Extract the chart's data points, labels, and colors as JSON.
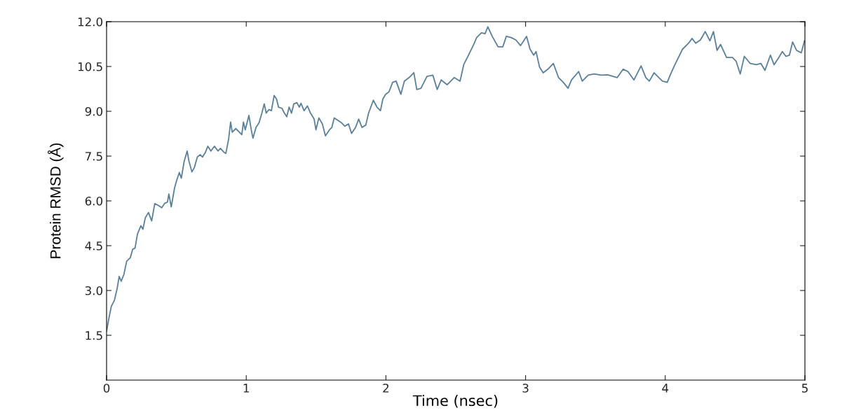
{
  "chart_data": {
    "type": "line",
    "xlabel": "Time (nsec)",
    "ylabel": "Protein RMSD (Å)",
    "xlim": [
      0,
      5
    ],
    "xticks": [
      0,
      1,
      2,
      3,
      4,
      5
    ],
    "ylim": [
      0,
      12
    ],
    "yticks": [
      {
        "value": 1.5,
        "label": "1.5"
      },
      {
        "value": 3,
        "label": "3.0"
      },
      {
        "value": 4.5,
        "label": "4.5"
      },
      {
        "value": 6,
        "label": "6.0"
      },
      {
        "value": 7.5,
        "label": "7.5"
      },
      {
        "value": 9,
        "label": "9.0"
      },
      {
        "value": 10.5,
        "label": "10.5"
      },
      {
        "value": 12,
        "label": "12.0"
      }
    ],
    "grid": false,
    "marker": "none",
    "line_style": "solid",
    "series": [
      {
        "color": "#5a7f99",
        "x": [
          0,
          0.017,
          0.034,
          0.056,
          0.076,
          0.09,
          0.105,
          0.124,
          0.144,
          0.17,
          0.187,
          0.204,
          0.221,
          0.246,
          0.26,
          0.277,
          0.3,
          0.323,
          0.345,
          0.373,
          0.395,
          0.416,
          0.436,
          0.446,
          0.463,
          0.487,
          0.504,
          0.521,
          0.535,
          0.555,
          0.577,
          0.589,
          0.611,
          0.628,
          0.65,
          0.67,
          0.687,
          0.708,
          0.725,
          0.747,
          0.772,
          0.798,
          0.815,
          0.84,
          0.854,
          0.874,
          0.888,
          0.9,
          0.925,
          0.951,
          0.968,
          0.98,
          0.993,
          1.019,
          1.036,
          1.048,
          1.07,
          1.092,
          1.112,
          1.129,
          1.143,
          1.163,
          1.18,
          1.2,
          1.217,
          1.231,
          1.256,
          1.273,
          1.29,
          1.307,
          1.324,
          1.341,
          1.363,
          1.38,
          1.392,
          1.414,
          1.438,
          1.46,
          1.486,
          1.499,
          1.52,
          1.545,
          1.567,
          1.596,
          1.613,
          1.63,
          1.655,
          1.681,
          1.706,
          1.732,
          1.754,
          1.783,
          1.805,
          1.829,
          1.856,
          1.876,
          1.91,
          1.936,
          1.961,
          1.978,
          1.998,
          2.022,
          2.048,
          2.073,
          2.107,
          2.132,
          2.166,
          2.2,
          2.221,
          2.251,
          2.294,
          2.336,
          2.367,
          2.396,
          2.438,
          2.489,
          2.531,
          2.557,
          2.591,
          2.625,
          2.65,
          2.684,
          2.71,
          2.73,
          2.761,
          2.803,
          2.837,
          2.862,
          2.896,
          2.93,
          2.964,
          3.007,
          3.032,
          3.058,
          3.075,
          3.1,
          3.126,
          3.16,
          3.199,
          3.236,
          3.27,
          3.304,
          3.329,
          3.38,
          3.406,
          3.448,
          3.491,
          3.542,
          3.588,
          3.656,
          3.699,
          3.733,
          3.776,
          3.827,
          3.861,
          3.886,
          3.92,
          3.954,
          3.98,
          4.014,
          4.039,
          4.065,
          4.09,
          4.124,
          4.167,
          4.192,
          4.218,
          4.252,
          4.286,
          4.32,
          4.345,
          4.371,
          4.396,
          4.439,
          4.481,
          4.507,
          4.537,
          4.566,
          4.609,
          4.651,
          4.685,
          4.714,
          4.753,
          4.779,
          4.813,
          4.838,
          4.864,
          4.889,
          4.912,
          4.94,
          4.974,
          4.997
        ],
        "values": [
          1.64,
          2.08,
          2.47,
          2.67,
          3.07,
          3.47,
          3.31,
          3.54,
          3.98,
          4.1,
          4.38,
          4.42,
          4.89,
          5.17,
          5.05,
          5.43,
          5.61,
          5.33,
          5.91,
          5.84,
          5.77,
          5.92,
          5.96,
          6.23,
          5.8,
          6.44,
          6.72,
          6.95,
          6.76,
          7.31,
          7.67,
          7.35,
          6.97,
          7.11,
          7.47,
          7.55,
          7.47,
          7.63,
          7.83,
          7.67,
          7.83,
          7.67,
          7.76,
          7.63,
          7.59,
          8.07,
          8.64,
          8.3,
          8.42,
          8.3,
          8.22,
          8.64,
          8.38,
          8.86,
          8.38,
          8.1,
          8.46,
          8.62,
          8.94,
          9.25,
          8.94,
          9.06,
          9.02,
          9.53,
          9.41,
          9.14,
          9.1,
          8.94,
          8.82,
          9.14,
          8.94,
          9.25,
          9.29,
          9.14,
          9.27,
          9.02,
          9.18,
          8.94,
          8.74,
          8.38,
          8.78,
          8.58,
          8.18,
          8.38,
          8.46,
          8.78,
          8.7,
          8.62,
          8.5,
          8.58,
          8.26,
          8.46,
          8.74,
          8.46,
          8.54,
          8.94,
          9.37,
          9.14,
          9.02,
          9.41,
          9.57,
          9.65,
          9.97,
          10.01,
          9.57,
          10.01,
          10.13,
          10.29,
          9.73,
          9.77,
          10.17,
          10.21,
          9.73,
          10.05,
          9.89,
          10.13,
          10.01,
          10.56,
          10.88,
          11.2,
          11.47,
          11.63,
          11.6,
          11.83,
          11.51,
          11.16,
          11.16,
          11.51,
          11.47,
          11.39,
          11.2,
          11.51,
          11.08,
          10.88,
          11.0,
          10.48,
          10.29,
          10.41,
          10.6,
          10.13,
          9.97,
          9.77,
          10.05,
          10.33,
          10.01,
          10.21,
          10.25,
          10.21,
          10.22,
          10.13,
          10.41,
          10.33,
          10.05,
          10.52,
          10.13,
          10.01,
          10.29,
          10.13,
          10.01,
          9.97,
          10.25,
          10.52,
          10.76,
          11.08,
          11.28,
          11.44,
          11.28,
          11.39,
          11.67,
          11.36,
          11.67,
          11.04,
          11.24,
          10.8,
          10.8,
          10.68,
          10.25,
          10.84,
          10.6,
          10.56,
          10.6,
          10.37,
          10.88,
          10.56,
          10.8,
          11.0,
          10.84,
          10.88,
          11.32,
          11.04,
          10.96,
          11.36
        ]
      }
    ]
  }
}
